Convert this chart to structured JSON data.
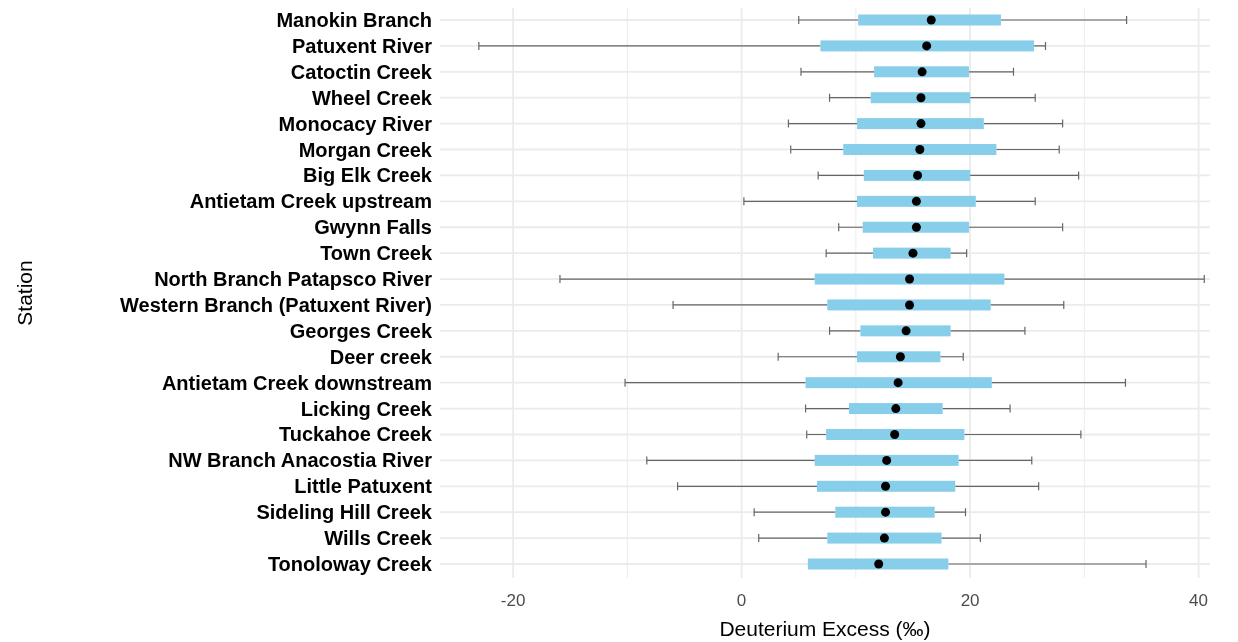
{
  "chart_data": {
    "type": "box",
    "orientation": "horizontal",
    "xlabel": "Deuterium Excess (‰)",
    "ylabel": "Station",
    "color": "#87ceeb",
    "grid": true,
    "xlim": [
      -26.4,
      41.0
    ],
    "xticks": [
      -20,
      {
        "value": -10,
        "label": null
      },
      0,
      {
        "value": 10,
        "label": null
      },
      20,
      {
        "value": 30,
        "label": null
      },
      40
    ],
    "categories": [
      "Manokin Branch",
      "Patuxent River",
      "Catoctin Creek",
      "Wheel Creek",
      "Monocacy River",
      "Morgan Creek",
      "Big Elk Creek",
      "Antietam Creek upstream",
      "Gwynn Falls",
      "Town Creek",
      "North Branch Patapsco River",
      "Western Branch (Patuxent River)",
      "Georges Creek",
      "Deer creek",
      "Antietam Creek downstream",
      "Licking Creek",
      "Tuckahoe Creek",
      "NW Branch Anacostia River",
      "Little Patuxent",
      "Sideling Hill Creek",
      "Wills Creek",
      "Tonoloway Creek"
    ],
    "boxes": [
      {
        "low": 5.0,
        "q1": 10.2,
        "median": 16.6,
        "q3": 22.7,
        "high": 33.7
      },
      {
        "low": -23.0,
        "q1": 6.9,
        "median": 16.2,
        "q3": 25.6,
        "high": 26.6
      },
      {
        "low": 5.2,
        "q1": 11.6,
        "median": 15.8,
        "q3": 19.9,
        "high": 23.8
      },
      {
        "low": 7.7,
        "q1": 11.3,
        "median": 15.7,
        "q3": 20.0,
        "high": 25.7
      },
      {
        "low": 4.1,
        "q1": 10.1,
        "median": 15.7,
        "q3": 21.2,
        "high": 28.1
      },
      {
        "low": 4.3,
        "q1": 8.9,
        "median": 15.6,
        "q3": 22.3,
        "high": 27.8
      },
      {
        "low": 6.7,
        "q1": 10.7,
        "median": 15.4,
        "q3": 20.0,
        "high": 29.5
      },
      {
        "low": 0.2,
        "q1": 10.1,
        "median": 15.3,
        "q3": 20.5,
        "high": 25.7
      },
      {
        "low": 8.5,
        "q1": 10.6,
        "median": 15.3,
        "q3": 19.9,
        "high": 28.1
      },
      {
        "low": 7.4,
        "q1": 11.5,
        "median": 15.0,
        "q3": 18.3,
        "high": 19.7
      },
      {
        "low": -15.9,
        "q1": 6.4,
        "median": 14.7,
        "q3": 23.0,
        "high": 40.5
      },
      {
        "low": -6.0,
        "q1": 7.5,
        "median": 14.7,
        "q3": 21.8,
        "high": 28.2
      },
      {
        "low": 7.7,
        "q1": 10.4,
        "median": 14.4,
        "q3": 18.3,
        "high": 24.8
      },
      {
        "low": 3.2,
        "q1": 10.1,
        "median": 13.9,
        "q3": 17.4,
        "high": 19.4
      },
      {
        "low": -10.2,
        "q1": 5.6,
        "median": 13.7,
        "q3": 21.9,
        "high": 33.6
      },
      {
        "low": 5.6,
        "q1": 9.4,
        "median": 13.5,
        "q3": 17.6,
        "high": 23.5
      },
      {
        "low": 5.7,
        "q1": 7.4,
        "median": 13.4,
        "q3": 19.5,
        "high": 29.7
      },
      {
        "low": -8.3,
        "q1": 6.4,
        "median": 12.7,
        "q3": 19.0,
        "high": 25.4
      },
      {
        "low": -5.6,
        "q1": 6.6,
        "median": 12.6,
        "q3": 18.7,
        "high": 26.0
      },
      {
        "low": 1.1,
        "q1": 8.2,
        "median": 12.6,
        "q3": 16.9,
        "high": 19.6
      },
      {
        "low": 1.5,
        "q1": 7.5,
        "median": 12.5,
        "q3": 17.5,
        "high": 20.9
      },
      {
        "low": 5.8,
        "q1": 5.8,
        "median": 12.0,
        "q3": 18.1,
        "high": 35.4
      }
    ]
  }
}
